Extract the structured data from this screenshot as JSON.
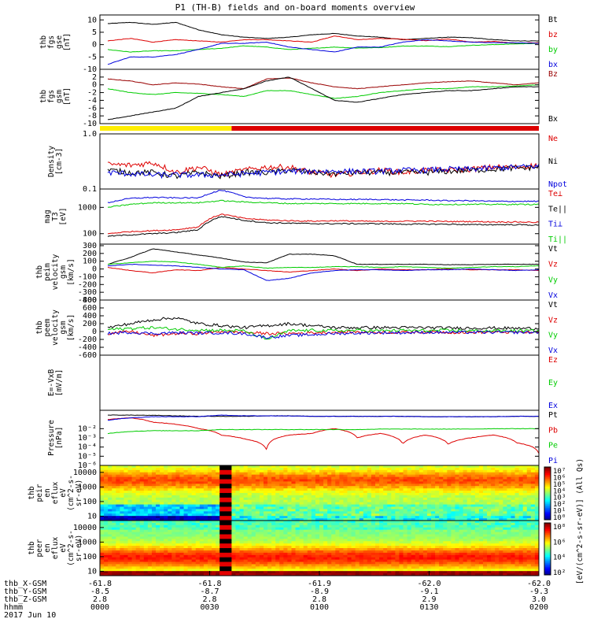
{
  "title": "P1 (TH-B) fields and on-board moments overview",
  "colors": {
    "black": "#000000",
    "red": "#dd0000",
    "green": "#00cc00",
    "blue": "#0000dd",
    "yellow": "#ffee00",
    "darkred": "#990000",
    "maroon": "#800000"
  },
  "orbit_bar": {
    "colors": [
      "yellow",
      "red"
    ],
    "switch_time": "0036"
  },
  "chart_data": [
    {
      "type": "line",
      "id": "fgs_gse",
      "ylabel": [
        "thb",
        "fgs",
        "gse",
        "[nT]"
      ],
      "ylim": [
        -10,
        12
      ],
      "yticks": [
        10,
        5,
        0,
        -5,
        -10
      ],
      "series": [
        {
          "name": "Bt",
          "color": "black",
          "values": [
            8.5,
            9,
            8.2,
            9,
            6,
            4,
            3,
            2.5,
            3,
            4,
            4.5,
            3.5,
            3,
            2,
            2.5,
            3,
            2.8,
            2,
            1.5,
            1.5
          ]
        },
        {
          "name": "bz",
          "color": "red",
          "values": [
            1.5,
            2.5,
            1,
            2,
            1.5,
            1,
            2,
            2,
            1.5,
            1,
            3.5,
            2,
            2.5,
            2.2,
            1.6,
            2.3,
            1,
            1.3,
            0.5,
            0.8
          ]
        },
        {
          "name": "by",
          "color": "green",
          "values": [
            -2,
            -3,
            -2.5,
            -2.5,
            -2,
            -1.5,
            -0.5,
            -1,
            -2,
            -1.5,
            -1,
            -1.4,
            -1.2,
            -0.6,
            -0.6,
            -0.8,
            -0.3,
            0,
            0.3,
            0.5
          ]
        },
        {
          "name": "bx",
          "color": "blue",
          "values": [
            -8,
            -5,
            -5,
            -4,
            -2,
            0.5,
            0.5,
            1,
            -1,
            -2,
            -3,
            -1,
            -1,
            1,
            2,
            1.5,
            1,
            0.8,
            0.7,
            0.5
          ]
        }
      ],
      "legend": [
        "Bt",
        "bz",
        "by",
        "bx"
      ]
    },
    {
      "type": "line",
      "id": "fgs_gsm",
      "ylabel": [
        "thb",
        "fgs",
        "gsm",
        "[nT]"
      ],
      "ylim": [
        -10,
        4
      ],
      "yticks": [
        2,
        0,
        -2,
        -4,
        -6,
        -8,
        -10
      ],
      "series": [
        {
          "name": "Bz",
          "color": "darkred",
          "values": [
            1.5,
            1,
            0,
            0.5,
            0.2,
            -0.5,
            -1,
            1.5,
            1.8,
            0.5,
            -0.5,
            -1,
            -0.5,
            0,
            0.5,
            0.8,
            1,
            0.5,
            0,
            0.5
          ]
        },
        {
          "name": "By",
          "color": "green",
          "values": [
            -1,
            -2,
            -2.5,
            -2,
            -2.2,
            -2.5,
            -3,
            -1.5,
            -1.5,
            -2.5,
            -3.5,
            -3,
            -2,
            -1.5,
            -1,
            -1,
            -0.5,
            -0.5,
            -0.3,
            0
          ]
        },
        {
          "name": "Bx",
          "color": "black",
          "values": [
            -9,
            -8,
            -7,
            -6,
            -3,
            -2,
            -1,
            1,
            2,
            -1,
            -4,
            -4.5,
            -3.5,
            -2.5,
            -2,
            -1.5,
            -1.5,
            -1,
            -0.5,
            -0.5
          ]
        }
      ],
      "legend": [
        "Bz",
        "Bx"
      ]
    },
    {
      "type": "line",
      "id": "density",
      "yscale": "log",
      "ylabel": [
        "Density",
        "[cm-3]"
      ],
      "ylim": [
        0.1,
        1.0
      ],
      "yticks": [
        1.0,
        0.1
      ],
      "yticklabels": [
        "1.0",
        "0.1"
      ],
      "series": [
        {
          "name": "Ne",
          "color": "red",
          "values": [
            0.28,
            0.27,
            0.3,
            0.2,
            0.25,
            0.18,
            0.22,
            0.25,
            0.25,
            0.2,
            0.18,
            0.2,
            0.22,
            0.2,
            0.22,
            0.22,
            0.23,
            0.25,
            0.25,
            0.27
          ]
        },
        {
          "name": "Ni",
          "color": "black",
          "values": [
            0.22,
            0.2,
            0.2,
            0.17,
            0.2,
            0.17,
            0.2,
            0.2,
            0.22,
            0.2,
            0.19,
            0.2,
            0.2,
            0.2,
            0.2,
            0.21,
            0.22,
            0.23,
            0.24,
            0.25
          ]
        },
        {
          "name": "Npot",
          "color": "blue",
          "values": [
            0.2,
            0.19,
            0.18,
            0.18,
            0.18,
            0.18,
            0.19,
            0.2,
            0.21,
            0.21,
            0.21,
            0.21,
            0.21,
            0.22,
            0.22,
            0.23,
            0.23,
            0.24,
            0.25,
            0.26
          ]
        }
      ],
      "legend": [
        "Ne",
        "Ni",
        "Npot"
      ]
    },
    {
      "type": "line",
      "id": "temperature",
      "yscale": "log",
      "ylabel": [
        "mag",
        "T3",
        "[eV]"
      ],
      "ylim": [
        40,
        5000
      ],
      "yticks": [
        1000,
        100
      ],
      "yticklabels": [
        "1000",
        "100"
      ],
      "series": [
        {
          "name": "Te⊥",
          "color": "red",
          "values": [
            100,
            120,
            130,
            140,
            180,
            550,
            380,
            330,
            310,
            300,
            310,
            300,
            290,
            300,
            300,
            290,
            290,
            280,
            280,
            270
          ]
        },
        {
          "name": "Te||",
          "color": "black",
          "values": [
            80,
            90,
            100,
            110,
            140,
            450,
            320,
            260,
            250,
            240,
            240,
            240,
            240,
            230,
            230,
            230,
            220,
            220,
            220,
            210
          ]
        },
        {
          "name": "Ti⊥",
          "color": "blue",
          "values": [
            1500,
            2200,
            2400,
            2300,
            2300,
            4500,
            2500,
            2200,
            2100,
            2100,
            2000,
            2000,
            2000,
            1900,
            1900,
            1800,
            1800,
            1700,
            1700,
            1700
          ]
        },
        {
          "name": "Ti||",
          "color": "green",
          "values": [
            1000,
            1300,
            1500,
            1500,
            1500,
            1800,
            1600,
            1500,
            1400,
            1400,
            1400,
            1400,
            1400,
            1400,
            1300,
            1300,
            1300,
            1300,
            1300,
            1300
          ]
        }
      ],
      "legend": [
        "Te⊥",
        "Te||",
        "Ti⊥",
        "Ti||"
      ]
    },
    {
      "type": "line",
      "id": "ion_velocity",
      "ylabel": [
        "thb",
        "peim",
        "velocity",
        "gsm",
        "[km/s]"
      ],
      "ylim": [
        -400,
        320
      ],
      "yticks": [
        300,
        200,
        100,
        0,
        -100,
        -200,
        -300,
        -400
      ],
      "series": [
        {
          "name": "Vt",
          "color": "black",
          "values": [
            60,
            150,
            260,
            220,
            180,
            140,
            90,
            80,
            190,
            190,
            170,
            60,
            60,
            60,
            60,
            55,
            55,
            60,
            60,
            60
          ]
        },
        {
          "name": "Vz",
          "color": "red",
          "values": [
            20,
            -20,
            -50,
            -10,
            -20,
            20,
            0,
            -20,
            -40,
            -20,
            0,
            -20,
            0,
            -10,
            -10,
            0,
            -10,
            -10,
            -10,
            -20
          ]
        },
        {
          "name": "Vy",
          "color": "green",
          "values": [
            60,
            80,
            100,
            90,
            60,
            20,
            40,
            10,
            20,
            20,
            30,
            30,
            20,
            30,
            20,
            10,
            20,
            30,
            30,
            40
          ]
        },
        {
          "name": "Vx",
          "color": "blue",
          "values": [
            40,
            60,
            50,
            40,
            20,
            0,
            -10,
            -150,
            -120,
            -50,
            -20,
            -10,
            -10,
            -20,
            -10,
            -10,
            0,
            -10,
            -20,
            -10
          ]
        }
      ],
      "legend": [
        "Vt",
        "Vz",
        "Vy",
        "Vx"
      ]
    },
    {
      "type": "line",
      "id": "electron_velocity",
      "ylabel": [
        "thb",
        "peem",
        "velocity",
        "gsm",
        "[km/s]"
      ],
      "ylim": [
        -600,
        800
      ],
      "yticks": [
        800,
        600,
        400,
        200,
        0,
        -200,
        -400,
        -600
      ],
      "series": [
        {
          "name": "Vt",
          "color": "black",
          "values": [
            100,
            200,
            300,
            350,
            200,
            150,
            100,
            150,
            200,
            150,
            100,
            100,
            100,
            100,
            100,
            90,
            90,
            90,
            80,
            80
          ]
        },
        {
          "name": "Vz",
          "color": "red",
          "values": [
            -50,
            0,
            -100,
            -50,
            -50,
            0,
            -20,
            -50,
            -50,
            -30,
            -20,
            -10,
            -20,
            -20,
            -10,
            -20,
            -20,
            -10,
            -20,
            -20
          ]
        },
        {
          "name": "Vy",
          "color": "green",
          "values": [
            50,
            80,
            100,
            60,
            40,
            30,
            20,
            -200,
            20,
            30,
            20,
            30,
            20,
            30,
            20,
            30,
            20,
            20,
            20,
            20
          ]
        },
        {
          "name": "Vx",
          "color": "blue",
          "values": [
            -50,
            -20,
            -50,
            -30,
            -40,
            -30,
            -50,
            -150,
            -100,
            -80,
            -50,
            -40,
            -30,
            -30,
            -20,
            -20,
            -20,
            -20,
            -20,
            -20
          ]
        }
      ],
      "legend": [
        "Vt",
        "Vz",
        "Vy",
        "Vx"
      ]
    },
    {
      "type": "line",
      "id": "efield",
      "ylabel": [
        "E=-VxB",
        "[mV/m]"
      ],
      "series": [],
      "legend": [
        "Ez",
        "Ey",
        "Ex"
      ]
    },
    {
      "type": "line",
      "id": "pressure",
      "yscale": "log",
      "ylabel": [
        "Pressure",
        "[nPa]"
      ],
      "ylim": [
        1e-06,
        1
      ],
      "yticks": [
        0.01,
        0.001,
        0.0001,
        1e-05,
        1e-06
      ],
      "yticklabels": [
        "10⁻²",
        "10⁻³",
        "10⁻⁴",
        "10⁻⁵",
        "10⁻⁶"
      ],
      "series": [
        {
          "name": "Pt",
          "color": "black",
          "values": [
            0.3,
            0.3,
            0.28,
            0.25,
            0.22,
            0.22,
            0.22,
            0.25,
            0.25,
            0.22,
            0.22,
            0.22,
            0.22,
            0.22,
            0.2,
            0.2,
            0.2,
            0.2,
            0.22,
            0.22
          ]
        },
        {
          "name": "Pb",
          "color": "red",
          "values": [
            0.1,
            0.15,
            0.05,
            0.03,
            0.01,
            0.002,
            0.0008,
            5e-05,
            0.002,
            0.003,
            0.01,
            0.001,
            0.003,
            0.0002,
            0.002,
            0.0002,
            0.001,
            0.002,
            0.0003,
            2e-05
          ]
        },
        {
          "name": "Pe",
          "color": "green",
          "values": [
            0.003,
            0.005,
            0.006,
            0.006,
            0.006,
            0.008,
            0.008,
            0.008,
            0.008,
            0.008,
            0.008,
            0.008,
            0.009,
            0.009,
            0.009,
            0.009,
            0.009,
            0.01,
            0.01,
            0.01
          ]
        },
        {
          "name": "Pi",
          "color": "blue",
          "values": [
            0.08,
            0.15,
            0.2,
            0.2,
            0.2,
            0.3,
            0.25,
            0.25,
            0.25,
            0.22,
            0.22,
            0.22,
            0.22,
            0.22,
            0.2,
            0.2,
            0.2,
            0.2,
            0.22,
            0.22
          ]
        }
      ],
      "legend": [
        "Pt",
        "Pb",
        "Pe",
        "Pi"
      ]
    },
    {
      "type": "heatmap",
      "id": "ion_spectrogram",
      "yscale": "log",
      "ylabel": [
        "thb",
        "peir",
        "en",
        "eflux",
        "eV",
        "(cm^2-s-",
        "sr-eV)"
      ],
      "ylim": [
        5,
        30000
      ],
      "yticks": [
        10000,
        1000,
        100,
        10
      ]
    },
    {
      "type": "heatmap",
      "id": "electron_spectrogram",
      "yscale": "log",
      "ylabel": [
        "thb",
        "peer",
        "en",
        "eflux",
        "eV",
        "(cm^2-s-",
        "sr-eV)"
      ],
      "ylim": [
        5,
        30000
      ],
      "yticks": [
        10000,
        1000,
        100,
        10
      ]
    }
  ],
  "colorbar": {
    "label": "[eV/(cm^2-s-sr-eV)] (All Qs)",
    "ion_ticks": [
      "10⁷",
      "10⁶",
      "10⁵",
      "10⁴",
      "10³",
      "10²",
      "10¹",
      "10⁰"
    ],
    "electron_ticks": [
      "10⁸",
      "10⁶",
      "10⁴",
      "10²"
    ]
  },
  "xaxis": {
    "rows": [
      {
        "label": "thb_X-GSM",
        "values": [
          "-61.8",
          "-61.8",
          "-61.9",
          "-62.0",
          "-62.0"
        ]
      },
      {
        "label": "thb_Y-GSM",
        "values": [
          "-8.5",
          "-8.7",
          "-8.9",
          "-9.1",
          "-9.3"
        ]
      },
      {
        "label": "thb_Z-GSM",
        "values": [
          "2.8",
          "2.8",
          "2.8",
          "2.9",
          "3.0"
        ]
      },
      {
        "label": "hhmm",
        "values": [
          "0000",
          "0030",
          "0100",
          "0130",
          "0200"
        ]
      }
    ],
    "date": "2017 Jun 10"
  }
}
